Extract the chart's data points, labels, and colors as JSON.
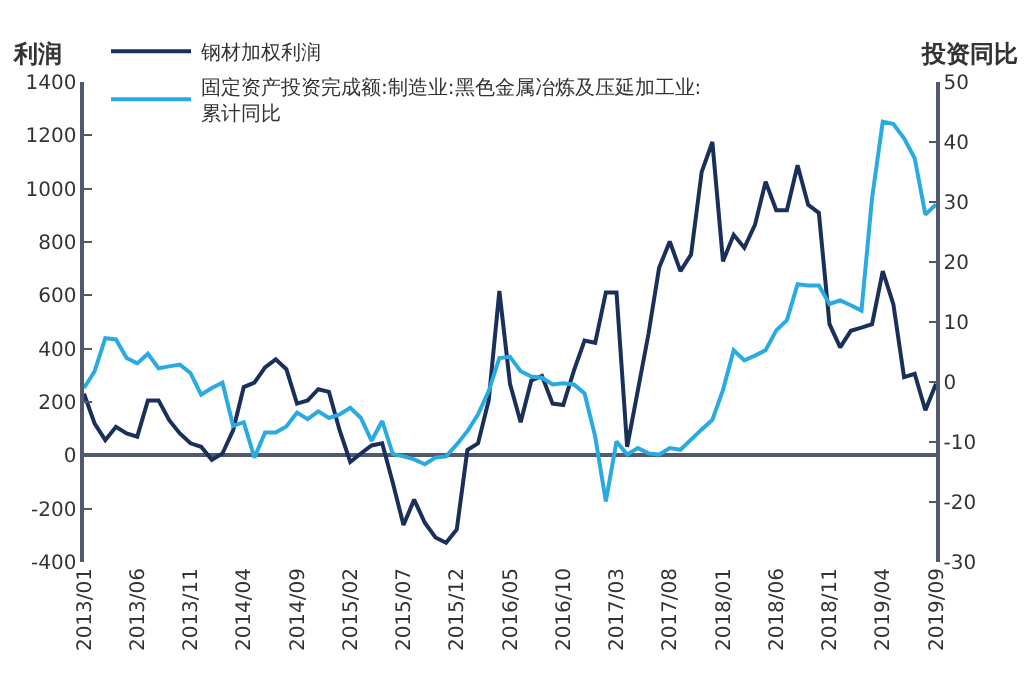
{
  "chart_data": {
    "type": "line",
    "ylabel": "利润",
    "y2label": "投资同比",
    "categories": [
      "2013/01",
      null,
      null,
      null,
      null,
      "2013/06",
      null,
      null,
      null,
      null,
      "2013/11",
      null,
      null,
      null,
      null,
      "2014/04",
      null,
      null,
      null,
      null,
      "2014/09",
      null,
      null,
      null,
      null,
      "2015/02",
      null,
      null,
      null,
      null,
      "2015/07",
      null,
      null,
      null,
      null,
      "2015/12",
      null,
      null,
      null,
      null,
      "2016/05",
      null,
      null,
      null,
      null,
      "2016/10",
      null,
      null,
      null,
      null,
      "2017/03",
      null,
      null,
      null,
      null,
      "2017/08",
      null,
      null,
      null,
      null,
      "2018/01",
      null,
      null,
      null,
      null,
      "2018/06",
      null,
      null,
      null,
      null,
      "2018/11",
      null,
      null,
      null,
      null,
      "2019/04",
      null,
      null,
      null,
      null,
      "2019/09"
    ],
    "series": [
      {
        "name": "钢材加权利润",
        "color": "#1b2f5b",
        "values": [
          231,
          119,
          57,
          107,
          82,
          70,
          206,
          206,
          132,
          82,
          45,
          32,
          -17,
          7,
          94,
          256,
          273,
          330,
          360,
          323,
          194,
          206,
          248,
          238,
          94,
          -25,
          7,
          37,
          45,
          -104,
          -261,
          -166,
          -253,
          -308,
          -328,
          -278,
          20,
          45,
          206,
          616,
          268,
          124,
          281,
          298,
          194,
          189,
          318,
          430,
          422,
          611,
          611,
          32,
          243,
          455,
          703,
          802,
          691,
          753,
          1063,
          1175,
          728,
          827,
          778,
          864,
          1026,
          919,
          919,
          1088,
          939,
          909,
          492,
          405,
          467,
          479,
          492,
          691,
          566,
          293,
          306,
          169,
          268
        ]
      },
      {
        "name": "固定资产投资完成额:制造业:黑色金属冶炼及压延加工业:累计同比",
        "color": "#29abe2",
        "axis": "y2",
        "values": [
          -1.0,
          1.8,
          7.3,
          7.1,
          4.0,
          3.1,
          4.7,
          2.3,
          2.6,
          2.9,
          1.5,
          -2.1,
          -1.0,
          -0.1,
          -7.3,
          -6.7,
          -12.6,
          -8.4,
          -8.4,
          -7.4,
          -5.1,
          -6.2,
          -4.9,
          -6.0,
          -5.4,
          -4.3,
          -6.0,
          -9.8,
          -6.5,
          -12.0,
          -12.4,
          -12.9,
          -13.7,
          -12.6,
          -12.4,
          -10.4,
          -8.2,
          -5.4,
          -1.5,
          4.0,
          4.2,
          1.8,
          0.9,
          0.7,
          -0.4,
          -0.2,
          -0.4,
          -1.9,
          -9.1,
          -19.9,
          -9.9,
          -12.1,
          -11.0,
          -11.9,
          -12.1,
          -11.0,
          -11.3,
          -9.6,
          -7.9,
          -6.3,
          -1.3,
          5.3,
          3.6,
          4.4,
          5.3,
          8.6,
          10.3,
          16.3,
          16.1,
          16.1,
          13.0,
          13.6,
          12.8,
          11.9,
          30.7,
          43.4,
          43.0,
          40.6,
          37.3,
          27.9,
          29.6
        ]
      }
    ],
    "ylim": [
      -400,
      1400
    ],
    "yticks": [
      -400,
      -200,
      0,
      200,
      400,
      600,
      800,
      1000,
      1200,
      1400
    ],
    "y2lim": [
      -30,
      50
    ],
    "y2ticks": [
      -30,
      -20,
      -10,
      0,
      10,
      20,
      30,
      40,
      50
    ],
    "legend": "top left",
    "marker": "none",
    "line_style": "solid"
  }
}
